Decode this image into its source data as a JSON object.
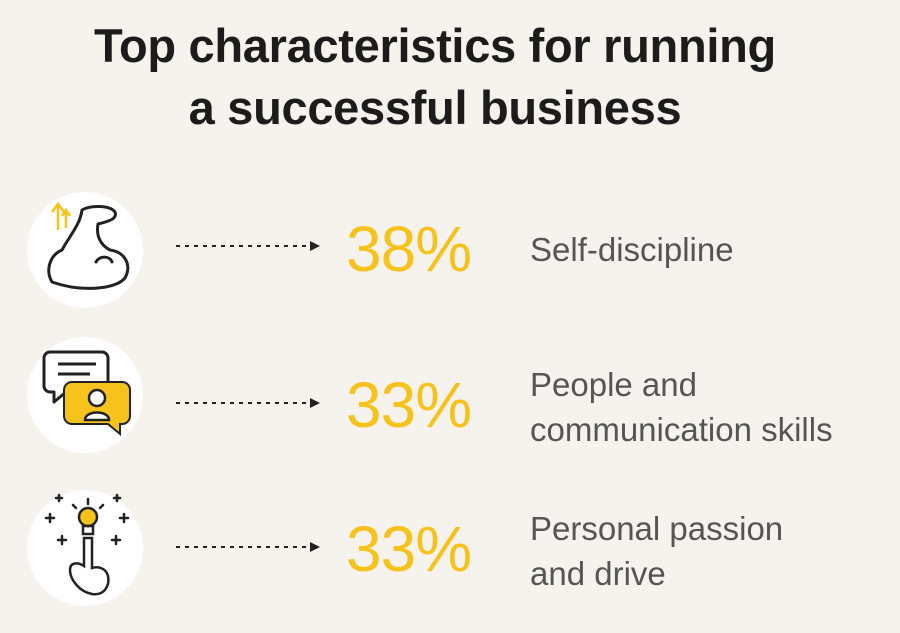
{
  "title": {
    "lines": [
      "Top characteristics for running",
      "a successful business"
    ]
  },
  "items": [
    {
      "value": "38%",
      "label_lines": [
        "Self-discipline"
      ]
    },
    {
      "value": "33%",
      "label_lines": [
        "People and",
        "communication skills"
      ]
    },
    {
      "value": "33%",
      "label_lines": [
        "Personal passion",
        "and drive"
      ]
    }
  ]
}
